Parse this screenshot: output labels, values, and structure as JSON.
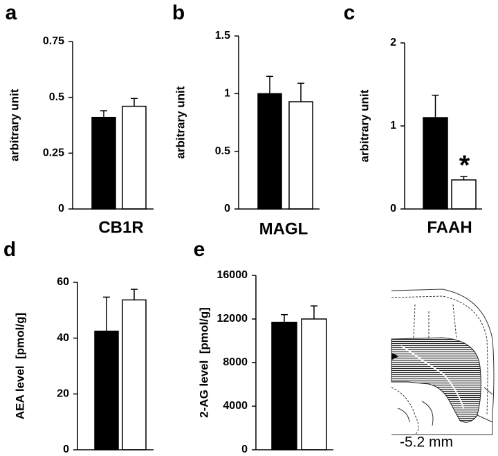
{
  "chart_data": [
    {
      "type": "bar",
      "panel": "a",
      "ylabel": "arbitrary unit",
      "xlabel": "CB1R",
      "values": [
        0.41,
        0.46
      ],
      "errors": [
        0.03,
        0.035
      ],
      "colors": [
        "#000000",
        "#ffffff"
      ],
      "ylim": [
        0,
        0.75
      ],
      "yticks": [
        0,
        0.25,
        0.5,
        0.75
      ]
    },
    {
      "type": "bar",
      "panel": "b",
      "ylabel": "arbitrary unit",
      "xlabel": "MAGL",
      "values": [
        1.0,
        0.93
      ],
      "errors": [
        0.15,
        0.16
      ],
      "colors": [
        "#000000",
        "#ffffff"
      ],
      "ylim": [
        0,
        1.5
      ],
      "yticks": [
        0,
        0.5,
        1,
        1.5
      ]
    },
    {
      "type": "bar",
      "panel": "c",
      "ylabel": "arbitrary unit",
      "xlabel": "FAAH",
      "values": [
        1.1,
        0.35
      ],
      "errors": [
        0.27,
        0.04
      ],
      "colors": [
        "#000000",
        "#ffffff"
      ],
      "ylim": [
        0,
        2
      ],
      "yticks": [
        0,
        1,
        2
      ],
      "annotation": "*"
    },
    {
      "type": "bar",
      "panel": "d",
      "ylabel": "AEA level  [pmol/g]",
      "values": [
        42.5,
        53.7
      ],
      "errors": [
        12.2,
        3.8
      ],
      "colors": [
        "#000000",
        "#ffffff"
      ],
      "ylim": [
        0,
        60
      ],
      "yticks": [
        0,
        20,
        40,
        60
      ]
    },
    {
      "type": "bar",
      "panel": "e",
      "ylabel": "2-AG level  [pmol/g]",
      "values": [
        11700,
        12000
      ],
      "errors": [
        700,
        1200
      ],
      "colors": [
        "#000000",
        "#ffffff"
      ],
      "ylim": [
        0,
        16000
      ],
      "yticks": [
        0,
        4000,
        8000,
        12000,
        16000
      ]
    }
  ],
  "brain_section": {
    "label": "-5.2 mm"
  }
}
